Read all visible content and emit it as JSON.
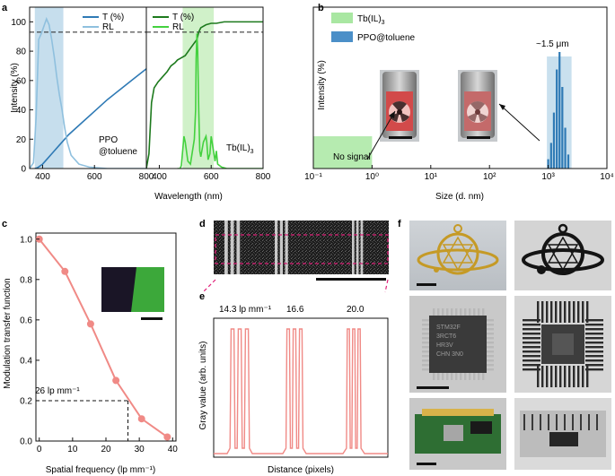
{
  "panels": {
    "a": "a",
    "b": "b",
    "c": "c",
    "d": "d",
    "e": "e",
    "f": "f"
  },
  "chart_data": [
    {
      "id": "a-left",
      "type": "line",
      "ylabel": "Intensity (%)",
      "xlabel": "Wavelength (nm)",
      "yticks": [
        "0",
        "20",
        "40",
        "60",
        "80",
        "100"
      ],
      "xticks": [
        "400",
        "600",
        "800"
      ],
      "xlim": [
        350,
        800
      ],
      "ylim": [
        0,
        110
      ],
      "reference_line": 93,
      "highlight": [
        370,
        480
      ],
      "legend": [
        "T (%)",
        "RL"
      ],
      "annotation": [
        "PPO",
        "@toluene"
      ],
      "colors": {
        "T": "#2f7ab5",
        "RL": "#8fc0de",
        "highlight": "#bcd8ea"
      },
      "series": [
        {
          "name": "T (%)",
          "x": [
            370,
            380,
            400,
            420,
            440,
            460,
            480,
            500,
            550,
            600,
            650,
            700,
            750,
            800
          ],
          "values": [
            0,
            0.5,
            3,
            7,
            11,
            15,
            19,
            23,
            31,
            39,
            47,
            54,
            61,
            68
          ]
        },
        {
          "name": "RL",
          "x": [
            350,
            365,
            375,
            385,
            395,
            405,
            415,
            425,
            435,
            445,
            455,
            465,
            475,
            485,
            495,
            510,
            540,
            580,
            650,
            720,
            800
          ],
          "values": [
            0,
            4,
            35,
            88,
            92,
            97,
            102,
            98,
            88,
            76,
            62,
            50,
            40,
            28,
            18,
            9,
            3,
            1,
            0,
            0,
            0
          ]
        }
      ]
    },
    {
      "id": "a-right",
      "type": "line",
      "xlabel": "Wavelength (nm)",
      "xticks": [
        "400",
        "600",
        "800"
      ],
      "xlim": [
        350,
        800
      ],
      "ylim": [
        0,
        110
      ],
      "reference_line": 93,
      "highlight": [
        490,
        610
      ],
      "legend": [
        "T (%)",
        "RL"
      ],
      "annotation": "Tb(IL)3",
      "colors": {
        "T": "#1d7a1d",
        "RL": "#44d13f",
        "highlight": "#c8efc0"
      },
      "series": [
        {
          "name": "T (%)",
          "x": [
            350,
            360,
            370,
            380,
            395,
            410,
            430,
            445,
            460,
            470,
            480,
            500,
            520,
            545,
            548,
            552,
            560,
            580,
            600,
            620,
            650,
            700,
            750,
            800
          ],
          "values": [
            0,
            10,
            45,
            55,
            59,
            62,
            66,
            70,
            72,
            74,
            75,
            77,
            82,
            88,
            90,
            93,
            96,
            98,
            99,
            99,
            100,
            100,
            100,
            100
          ]
        },
        {
          "name": "RL",
          "x": [
            470,
            480,
            485,
            490,
            495,
            500,
            510,
            520,
            535,
            540,
            542,
            545,
            548,
            552,
            556,
            560,
            570,
            580,
            583,
            588,
            595,
            600,
            615,
            620,
            625,
            640,
            660,
            700,
            800
          ],
          "values": [
            0,
            0,
            2,
            12,
            22,
            18,
            5,
            3,
            20,
            40,
            75,
            92,
            80,
            40,
            12,
            8,
            18,
            22,
            18,
            6,
            10,
            22,
            5,
            12,
            3,
            1,
            0,
            0,
            0
          ]
        }
      ]
    },
    {
      "id": "b",
      "type": "bar",
      "ylabel": "Intensity (%)",
      "xlabel": "Size (d. nm)",
      "xscale": "log",
      "xlim": [
        0.1,
        10000
      ],
      "xticks": [
        "10⁻¹",
        "10⁰",
        "10¹",
        "10²",
        "10³",
        "10⁴"
      ],
      "legend": [
        "Tb(IL)3",
        "PPO@toluene"
      ],
      "annotations": [
        "No signal",
        "~1.5 μm"
      ],
      "colors": {
        "tb": "#a9e7a2",
        "ppo": "#2f7ab5"
      },
      "x": [
        1000,
        1120,
        1250,
        1400,
        1560,
        1740,
        1950,
        2200
      ],
      "values": [
        8,
        22,
        48,
        85,
        100,
        70,
        35,
        12
      ]
    },
    {
      "id": "c",
      "type": "line",
      "ylabel": "Modulation transfer function",
      "xlabel": "Spatial frequency (lp mm⁻¹)",
      "xticks": [
        "0",
        "10",
        "20",
        "30",
        "40"
      ],
      "yticks": [
        "0.0",
        "0.2",
        "0.4",
        "0.6",
        "0.8",
        "1.0"
      ],
      "xlim": [
        -1,
        41
      ],
      "ylim": [
        0,
        1.03
      ],
      "annotation": "26 lp mm⁻¹",
      "cut_x": 26.6,
      "cut_y": 0.2,
      "colors": {
        "line": "#f08a86"
      },
      "x": [
        0,
        7.7,
        15.4,
        23,
        30.7,
        38.4
      ],
      "values": [
        1.0,
        0.84,
        0.58,
        0.3,
        0.11,
        0.02
      ]
    },
    {
      "id": "e",
      "type": "line",
      "ylabel": "Gray value (arb. units)",
      "xlabel": "Distance (pixels)",
      "group_labels": [
        "14.3 lp mm⁻¹",
        "16.6",
        "20.0"
      ],
      "colors": {
        "line": "#f08a86"
      }
    }
  ],
  "photo_labels": {
    "left": [
      "STM32F",
      "3RCT6",
      "HR3V",
      "CHN 3N0"
    ]
  }
}
